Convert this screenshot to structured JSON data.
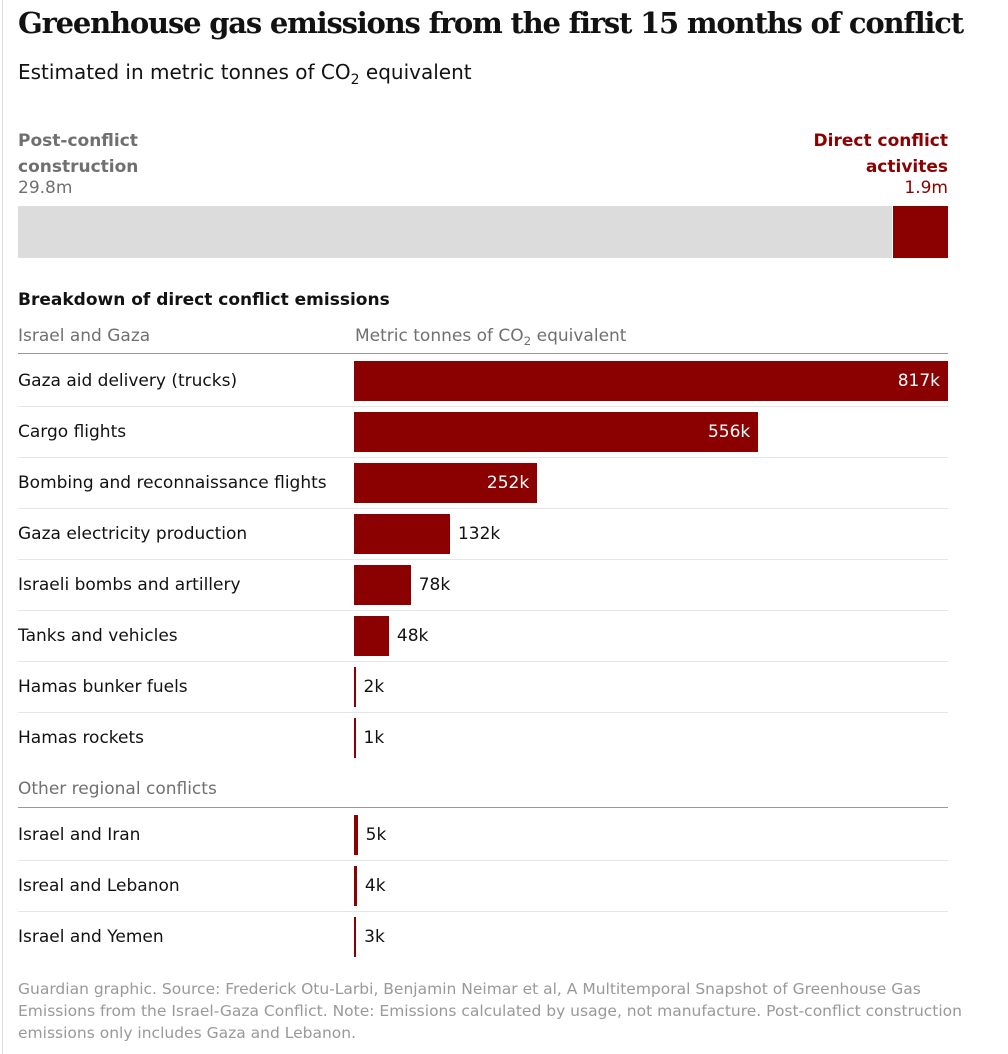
{
  "header": {
    "title": "Greenhouse gas emissions from the first 15 months of conflict",
    "subtitle_pre": "Estimated in metric tonnes of CO",
    "subtitle_sub": "2",
    "subtitle_post": " equivalent"
  },
  "summary": {
    "left_label": "Post-conflict construction",
    "left_value": "29.8m",
    "right_label": "Direct conflict activites",
    "right_value": "1.9m"
  },
  "breakdown_title": "Breakdown of direct conflict emissions",
  "column_header": {
    "pre": "Metric tonnes of CO",
    "sub": "2",
    "post": " equivalent"
  },
  "colors": {
    "accent": "#8b0000",
    "grey_bar": "#dcdcdc",
    "muted_text": "#707070",
    "footer_text": "#999999"
  },
  "chart_data": {
    "type": "bar",
    "orientation": "horizontal",
    "summary_stack": [
      {
        "label": "Post-conflict construction",
        "value": 29800000,
        "display": "29.8m"
      },
      {
        "label": "Direct conflict activites",
        "value": 1900000,
        "display": "1.9m"
      }
    ],
    "groups": [
      {
        "name": "Israel and Gaza",
        "items": [
          {
            "label": "Gaza aid delivery (trucks)",
            "value": 817000,
            "display": "817k"
          },
          {
            "label": "Cargo flights",
            "value": 556000,
            "display": "556k"
          },
          {
            "label": "Bombing and reconnaissance flights",
            "value": 252000,
            "display": "252k"
          },
          {
            "label": "Gaza electricity production",
            "value": 132000,
            "display": "132k"
          },
          {
            "label": "Israeli bombs and artillery",
            "value": 78000,
            "display": "78k"
          },
          {
            "label": "Tanks and vehicles",
            "value": 48000,
            "display": "48k"
          },
          {
            "label": "Hamas bunker fuels",
            "value": 2000,
            "display": "2k"
          },
          {
            "label": "Hamas rockets",
            "value": 1000,
            "display": "1k"
          }
        ]
      },
      {
        "name": "Other regional conflicts",
        "items": [
          {
            "label": "Israel and Iran",
            "value": 5000,
            "display": "5k"
          },
          {
            "label": "Isreal and Lebanon",
            "value": 4000,
            "display": "4k"
          },
          {
            "label": "Israel and Yemen",
            "value": 3000,
            "display": "3k"
          }
        ]
      }
    ],
    "xlim": [
      0,
      817000
    ]
  },
  "footer": "Guardian graphic. Source: Frederick Otu-Larbi, Benjamin Neimar et al, A Multitemporal Snapshot of Greenhouse Gas Emissions from the Israel-Gaza Conflict. Note: Emissions calculated by usage, not manufacture. Post-conflict construction emissions only includes Gaza and Lebanon."
}
